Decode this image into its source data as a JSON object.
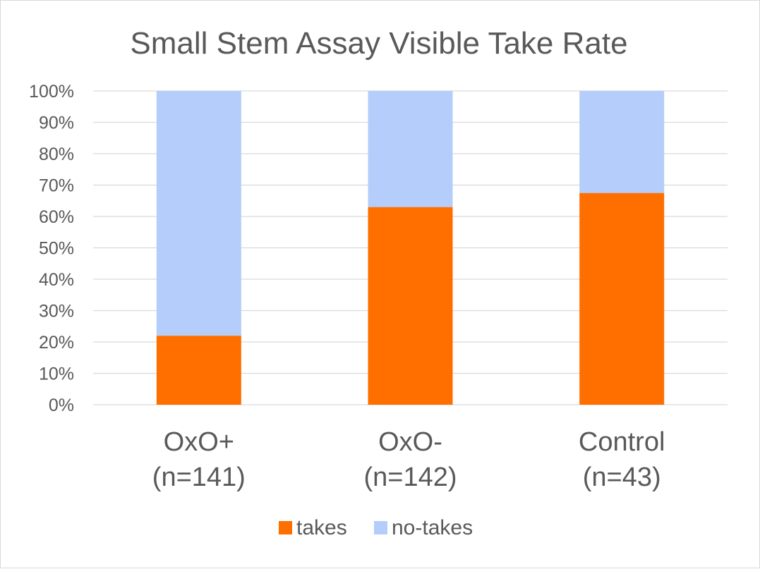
{
  "chart_data": {
    "type": "bar",
    "stacked": "percent",
    "title": "Small Stem Assay Visible Take Rate",
    "xlabel": "",
    "ylabel": "",
    "categories": [
      [
        "OxO+",
        "(n=141)"
      ],
      [
        "OxO-",
        "(n=142)"
      ],
      [
        "Control",
        "(n=43)"
      ]
    ],
    "series": [
      {
        "name": "takes",
        "color": "#ff6f00",
        "values": [
          22,
          63,
          67.5
        ]
      },
      {
        "name": "no-takes",
        "color": "#b4cdfa",
        "values": [
          78,
          37,
          32.5
        ]
      }
    ],
    "ylim": [
      0,
      100
    ],
    "yticks": [
      "0%",
      "10%",
      "20%",
      "30%",
      "40%",
      "50%",
      "60%",
      "70%",
      "80%",
      "90%",
      "100%"
    ],
    "grid": true,
    "gridline_color": "#d9d9d9",
    "legend_position": "bottom"
  }
}
